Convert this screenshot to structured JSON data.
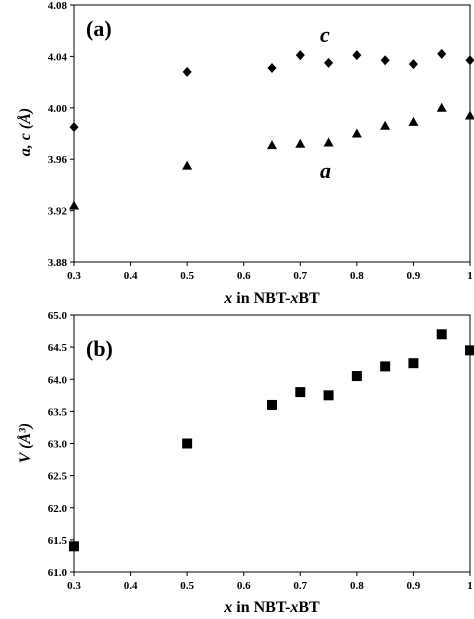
{
  "chart_data": [
    {
      "type": "scatter",
      "panel_label": "(a)",
      "xlabel_var": "x",
      "xlabel_rest": " in NBT-",
      "xlabel_var2": "x",
      "xlabel_tail": "BT",
      "ylabel": "a, c (Å)",
      "xlim": [
        0.3,
        1.0
      ],
      "ylim": [
        3.88,
        4.08
      ],
      "xticks": [
        "0.3",
        "0.4",
        "0.5",
        "0.6",
        "0.7",
        "0.8",
        "0.9",
        "1"
      ],
      "yticks": [
        "3.88",
        "3.92",
        "3.96",
        "4.00",
        "4.04",
        "4.08"
      ],
      "grid": false,
      "series": [
        {
          "name": "c",
          "marker": "diamond",
          "x": [
            0.3,
            0.5,
            0.65,
            0.7,
            0.75,
            0.8,
            0.85,
            0.9,
            0.95,
            1.0
          ],
          "y": [
            3.985,
            4.028,
            4.031,
            4.041,
            4.035,
            4.041,
            4.037,
            4.034,
            4.042,
            4.037
          ]
        },
        {
          "name": "a",
          "marker": "triangle",
          "x": [
            0.3,
            0.5,
            0.65,
            0.7,
            0.75,
            0.8,
            0.85,
            0.9,
            0.95,
            1.0
          ],
          "y": [
            3.924,
            3.955,
            3.971,
            3.972,
            3.973,
            3.98,
            3.986,
            3.989,
            4.0,
            3.994
          ]
        }
      ]
    },
    {
      "type": "scatter",
      "panel_label": "(b)",
      "xlabel_var": "x",
      "xlabel_rest": " in NBT-",
      "xlabel_var2": "x",
      "xlabel_tail": "BT",
      "ylabel": "V (Å³)",
      "xlim": [
        0.3,
        1.0
      ],
      "ylim": [
        61.0,
        65.0
      ],
      "xticks": [
        "0.3",
        "0.4",
        "0.5",
        "0.6",
        "0.7",
        "0.8",
        "0.9",
        "1"
      ],
      "yticks": [
        "61.0",
        "61.5",
        "62.0",
        "62.5",
        "63.0",
        "63.5",
        "64.0",
        "64.5",
        "65.0"
      ],
      "grid": false,
      "series": [
        {
          "name": "",
          "marker": "square",
          "x": [
            0.3,
            0.5,
            0.65,
            0.7,
            0.75,
            0.8,
            0.85,
            0.9,
            0.95,
            1.0
          ],
          "y": [
            61.4,
            63.0,
            63.6,
            63.8,
            63.75,
            64.05,
            64.2,
            64.25,
            64.7,
            64.45
          ]
        }
      ]
    }
  ]
}
